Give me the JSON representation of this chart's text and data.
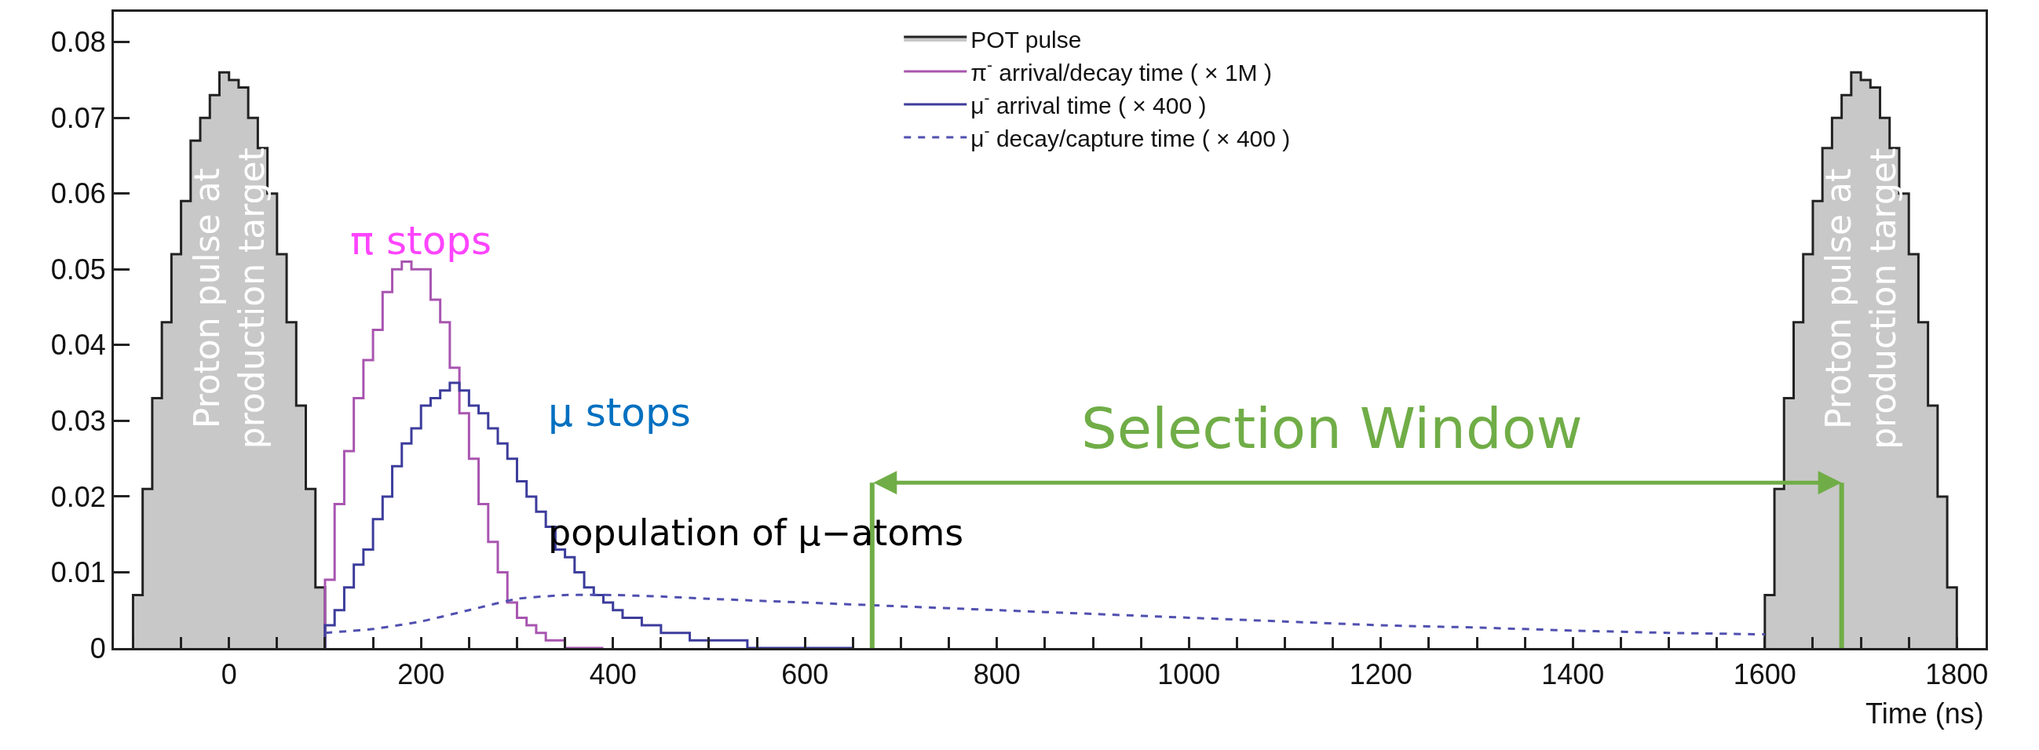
{
  "chart_data": {
    "type": "histogram",
    "xlabel": "Time (ns)",
    "xlim": [
      -120,
      1830
    ],
    "ylim": [
      0,
      0.084
    ],
    "xticks": [
      {
        "value": -100,
        "label": null
      },
      {
        "value": -50,
        "label": null
      },
      0,
      {
        "value": 50,
        "label": null
      },
      {
        "value": 100,
        "label": null
      },
      {
        "value": 150,
        "label": null
      },
      200,
      {
        "value": 250,
        "label": null
      },
      {
        "value": 300,
        "label": null
      },
      {
        "value": 350,
        "label": null
      },
      400,
      {
        "value": 450,
        "label": null
      },
      {
        "value": 500,
        "label": null
      },
      {
        "value": 550,
        "label": null
      },
      600,
      {
        "value": 650,
        "label": null
      },
      {
        "value": 700,
        "label": null
      },
      {
        "value": 750,
        "label": null
      },
      800,
      {
        "value": 850,
        "label": null
      },
      {
        "value": 900,
        "label": null
      },
      {
        "value": 950,
        "label": null
      },
      1000,
      {
        "value": 1050,
        "label": null
      },
      {
        "value": 1100,
        "label": null
      },
      {
        "value": 1150,
        "label": null
      },
      1200,
      {
        "value": 1250,
        "label": null
      },
      {
        "value": 1300,
        "label": null
      },
      {
        "value": 1350,
        "label": null
      },
      1400,
      {
        "value": 1450,
        "label": null
      },
      {
        "value": 1500,
        "label": null
      },
      {
        "value": 1550,
        "label": null
      },
      1600,
      {
        "value": 1650,
        "label": null
      },
      {
        "value": 1700,
        "label": null
      },
      {
        "value": 1750,
        "label": null
      },
      1800
    ],
    "yticks": [
      0,
      0.01,
      0.02,
      0.03,
      0.04,
      0.05,
      0.06,
      0.07,
      0.08
    ],
    "legend": "top right",
    "series": [
      {
        "name": "POT pulse",
        "color": "#c8c8c8",
        "bins": [
          -100,
          -90,
          -80,
          -70,
          -60,
          -50,
          -40,
          -30,
          -20,
          -10,
          0,
          10,
          20,
          30,
          40,
          50,
          60,
          70,
          80,
          90,
          100
        ],
        "values": [
          0.007,
          0.021,
          0.033,
          0.043,
          0.052,
          0.059,
          0.067,
          0.07,
          0.073,
          0.076,
          0.075,
          0.074,
          0.07,
          0.066,
          0.06,
          0.052,
          0.043,
          0.032,
          0.021,
          0.008
        ]
      },
      {
        "color": "#c8c8c8",
        "bins": [
          1600,
          1610,
          1620,
          1630,
          1640,
          1650,
          1660,
          1670,
          1680,
          1690,
          1700,
          1710,
          1720,
          1730,
          1740,
          1750,
          1760,
          1770,
          1780,
          1790,
          1800
        ],
        "values": [
          0.007,
          0.021,
          0.033,
          0.043,
          0.052,
          0.059,
          0.066,
          0.07,
          0.073,
          0.076,
          0.075,
          0.074,
          0.07,
          0.066,
          0.06,
          0.052,
          0.043,
          0.032,
          0.02,
          0.008
        ]
      },
      {
        "name": "π$^{-}$ arrival/decay time ( × 1M )",
        "color": "#a855b0",
        "bins": [
          100,
          110,
          120,
          130,
          140,
          150,
          160,
          170,
          180,
          190,
          200,
          210,
          220,
          230,
          240,
          250,
          260,
          270,
          280,
          290,
          300,
          310,
          320,
          330,
          340,
          350,
          360,
          370,
          380,
          390
        ],
        "values": [
          0.009,
          0.019,
          0.026,
          0.033,
          0.038,
          0.042,
          0.047,
          0.05,
          0.051,
          0.05,
          0.05,
          0.046,
          0.043,
          0.037,
          0.031,
          0.025,
          0.019,
          0.014,
          0.01,
          0.006,
          0.004,
          0.003,
          0.002,
          0.001,
          0.001,
          0,
          0,
          0,
          0
        ]
      },
      {
        "name": "μ$^{-}$ arrival time ( × 400 )",
        "color": "#3c3c9c",
        "bins": [
          100,
          110,
          120,
          130,
          140,
          150,
          160,
          170,
          180,
          190,
          200,
          210,
          220,
          230,
          240,
          250,
          260,
          270,
          280,
          290,
          300,
          310,
          320,
          330,
          340,
          350,
          360,
          370,
          380,
          390,
          400,
          410,
          420,
          430,
          440,
          450,
          460,
          470,
          480,
          490,
          500,
          510,
          520,
          530,
          540,
          550,
          560,
          570,
          580,
          590,
          600,
          610,
          620,
          630,
          640,
          650
        ],
        "values": [
          0.003,
          0.005,
          0.008,
          0.011,
          0.013,
          0.017,
          0.02,
          0.024,
          0.027,
          0.029,
          0.032,
          0.033,
          0.034,
          0.035,
          0.034,
          0.032,
          0.031,
          0.029,
          0.027,
          0.025,
          0.022,
          0.02,
          0.018,
          0.016,
          0.013,
          0.012,
          0.01,
          0.008,
          0.007,
          0.006,
          0.005,
          0.004,
          0.004,
          0.003,
          0.003,
          0.002,
          0.002,
          0.002,
          0.001,
          0.001,
          0.001,
          0.001,
          0.001,
          0.001,
          0,
          0,
          0,
          0,
          0,
          0,
          0,
          0,
          0,
          0,
          0
        ]
      },
      {
        "name": "μ$^{-}$ decay/capture time ( × 400 )",
        "color": "#5050b0",
        "type": "line",
        "line_style": "dashed",
        "x": [
          100,
          150,
          200,
          250,
          300,
          350,
          400,
          450,
          500,
          600,
          700,
          800,
          900,
          1000,
          1100,
          1200,
          1300,
          1400,
          1500,
          1600
        ],
        "values": [
          0.002,
          0.0025,
          0.0035,
          0.005,
          0.0065,
          0.007,
          0.007,
          0.0068,
          0.0065,
          0.006,
          0.0055,
          0.005,
          0.0045,
          0.004,
          0.0035,
          0.003,
          0.0027,
          0.0023,
          0.002,
          0.0018
        ]
      }
    ],
    "ref_lines": [
      {
        "axis": "x",
        "value": 670,
        "color": "#70ad47"
      },
      {
        "axis": "x",
        "value": 1680,
        "color": "#70ad47"
      }
    ],
    "annotations": [
      "π stops",
      "μ stops",
      "population of μ−atoms",
      "Proton pulse at\nproduction target",
      "Proton pulse at\nproduction target",
      "Selection Window"
    ]
  }
}
